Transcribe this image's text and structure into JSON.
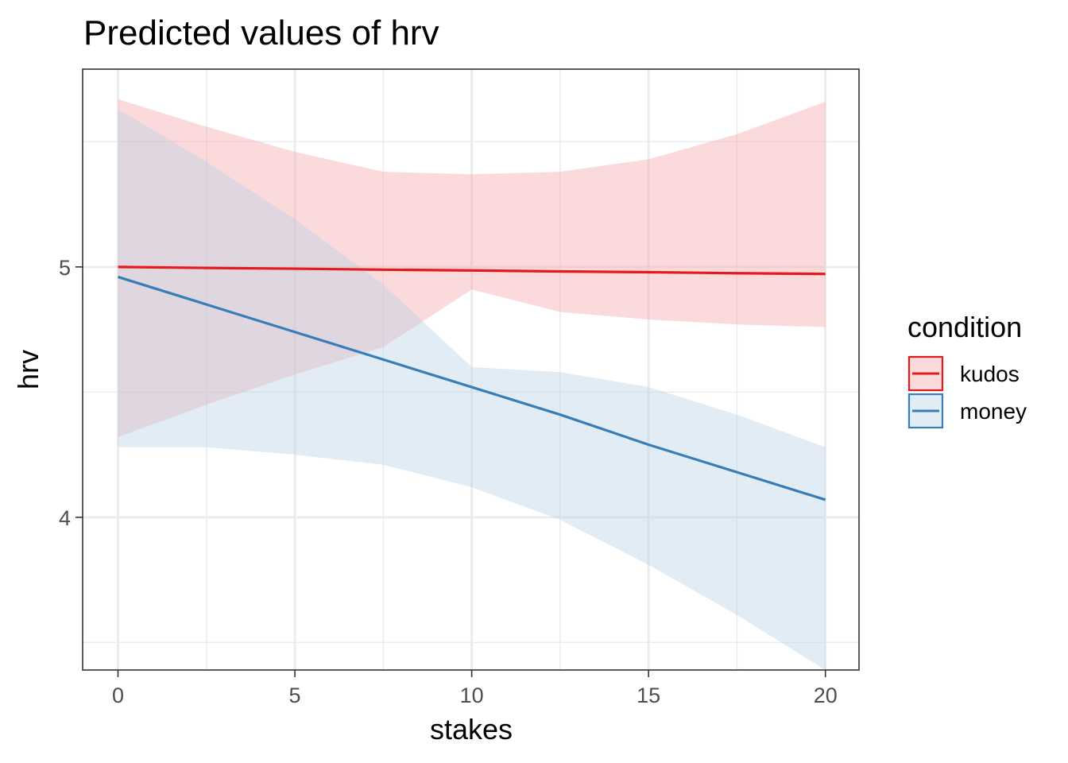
{
  "chart_data": {
    "type": "line",
    "title": "Predicted values of hrv",
    "xlabel": "stakes",
    "ylabel": "hrv",
    "xlim": [
      -1,
      20.95
    ],
    "ylim": [
      3.39,
      5.79
    ],
    "x_ticks": [
      0,
      5,
      10,
      15,
      20
    ],
    "x_tick_labels": [
      "0",
      "5",
      "10",
      "15",
      "20"
    ],
    "y_ticks": [
      4,
      5
    ],
    "y_tick_labels": [
      "4",
      "5"
    ],
    "grid": true,
    "legend": {
      "title": "condition",
      "position": "right"
    },
    "x": [
      0,
      2.5,
      5,
      7.5,
      10,
      12.5,
      15,
      17.5,
      20
    ],
    "series": [
      {
        "name": "kudos",
        "color": "#e41a1c",
        "fill": "#f4a6aa",
        "values": [
          5.0,
          4.996,
          4.993,
          4.989,
          4.986,
          4.982,
          4.979,
          4.975,
          4.972
        ],
        "lower": [
          4.32,
          4.45,
          4.57,
          4.68,
          4.91,
          4.82,
          4.79,
          4.77,
          4.76
        ],
        "upper": [
          5.67,
          5.56,
          5.46,
          5.38,
          5.37,
          5.38,
          5.43,
          5.53,
          5.66
        ]
      },
      {
        "name": "money",
        "color": "#377eb8",
        "fill": "#b9d1e8",
        "values": [
          4.96,
          4.85,
          4.74,
          4.63,
          4.52,
          4.41,
          4.29,
          4.18,
          4.07
        ],
        "lower": [
          4.28,
          4.28,
          4.25,
          4.21,
          4.12,
          3.99,
          3.81,
          3.61,
          3.39
        ],
        "upper": [
          5.63,
          5.42,
          5.19,
          4.93,
          4.6,
          4.58,
          4.52,
          4.41,
          4.28
        ]
      }
    ]
  }
}
